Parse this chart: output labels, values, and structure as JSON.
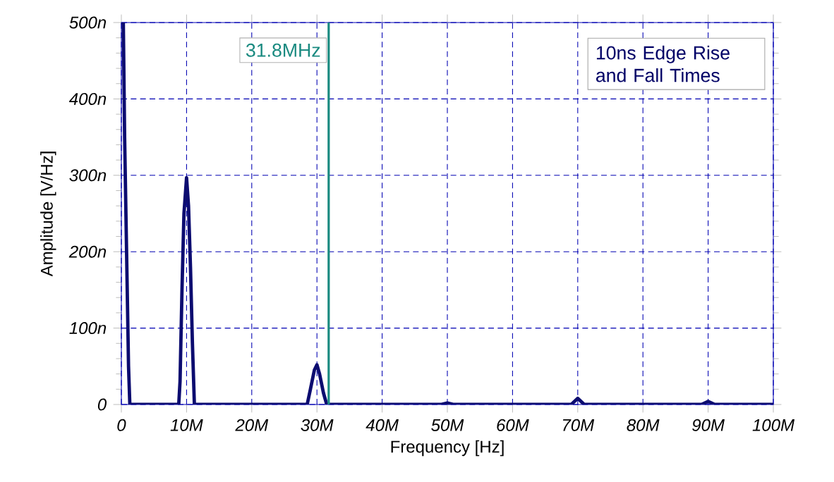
{
  "chart_data": {
    "type": "line",
    "xlabel": "Frequency [Hz]",
    "ylabel": "Amplitude [V/Hz]",
    "series": [
      {
        "color": "#0c0c70",
        "x": [
          0,
          0.3,
          0.5,
          0.7,
          0.9,
          1.1,
          1.3,
          8.8,
          9,
          9.3,
          9.6,
          10,
          10.3,
          10.6,
          10.9,
          11.2,
          28.5,
          29,
          29.6,
          30,
          30.4,
          31,
          31.5,
          49,
          50,
          51,
          69,
          70,
          71,
          89,
          90,
          91,
          100
        ],
        "values": [
          500,
          500,
          350,
          250,
          150,
          50,
          0,
          0,
          30,
          150,
          250,
          297,
          260,
          180,
          80,
          0,
          0,
          20,
          45,
          52,
          40,
          15,
          0,
          0,
          2,
          0,
          0,
          8,
          0,
          0,
          4,
          0,
          0
        ]
      }
    ],
    "xlim": [
      0,
      100
    ],
    "xticks": [
      0,
      {
        "value": 10,
        "label": "10M"
      },
      {
        "value": 20,
        "label": "20M"
      },
      {
        "value": 30,
        "label": "30M"
      },
      {
        "value": 40,
        "label": "40M"
      },
      {
        "value": 50,
        "label": "50M"
      },
      {
        "value": 60,
        "label": "60M"
      },
      {
        "value": 70,
        "label": "70M"
      },
      {
        "value": 80,
        "label": "80M"
      },
      {
        "value": 90,
        "label": "90M"
      },
      {
        "value": 100,
        "label": "100M"
      }
    ],
    "ylim": [
      0,
      500
    ],
    "yticks": [
      0,
      {
        "value": 100,
        "label": "100n"
      },
      {
        "value": 200,
        "label": "200n"
      },
      {
        "value": 300,
        "label": "300n"
      },
      {
        "value": 400,
        "label": "400n"
      },
      {
        "value": 500,
        "label": "500n"
      }
    ],
    "grid": true,
    "marker": "none",
    "line_style": "solid",
    "ref_lines": [
      {
        "axis": "x",
        "value": 31.8,
        "label": "31.8MHz",
        "color": "#1a8a80",
        "line_style": "solid"
      }
    ],
    "annotations": [
      "10ns Edge Rise and Fall Times"
    ]
  }
}
